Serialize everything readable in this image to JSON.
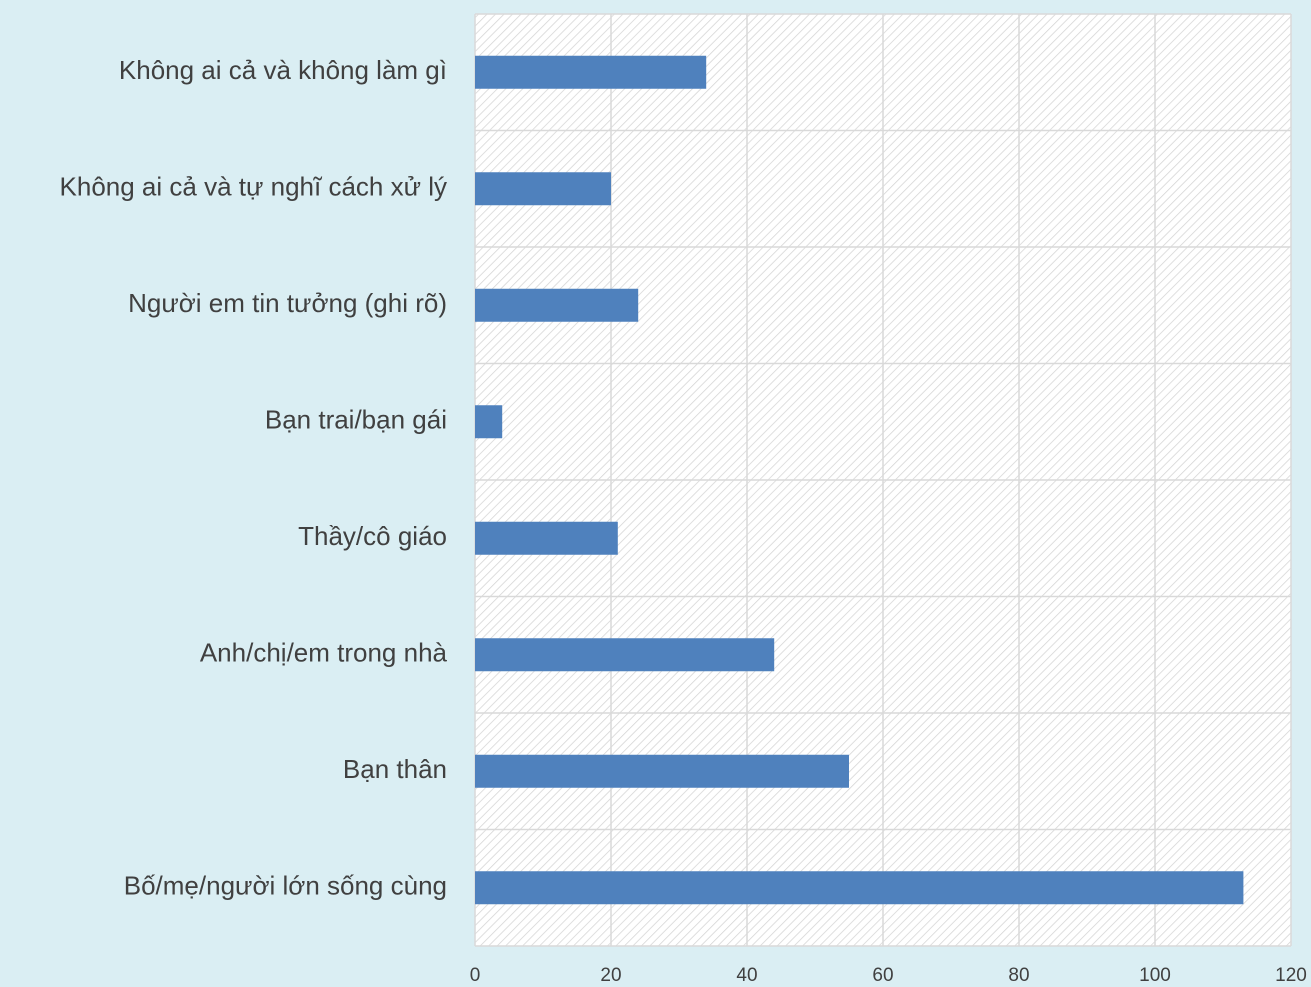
{
  "chart_data": {
    "type": "barh",
    "categories": [
      "Bố/mẹ/người lớn sống cùng",
      "Bạn thân",
      "Anh/chị/em trong nhà",
      "Thầy/cô giáo",
      "Bạn trai/bạn gái",
      "Người em tin tưởng (ghi rõ)",
      "Không ai cả và tự nghĩ cách xử lý",
      "Không ai cả và không làm gì"
    ],
    "values": [
      113,
      55,
      44,
      21,
      4,
      24,
      20,
      34
    ],
    "color": "#4f81bd",
    "xlim": [
      0,
      120
    ],
    "xticks": [
      0,
      20,
      40,
      60,
      80,
      100,
      120
    ],
    "grid": true
  }
}
